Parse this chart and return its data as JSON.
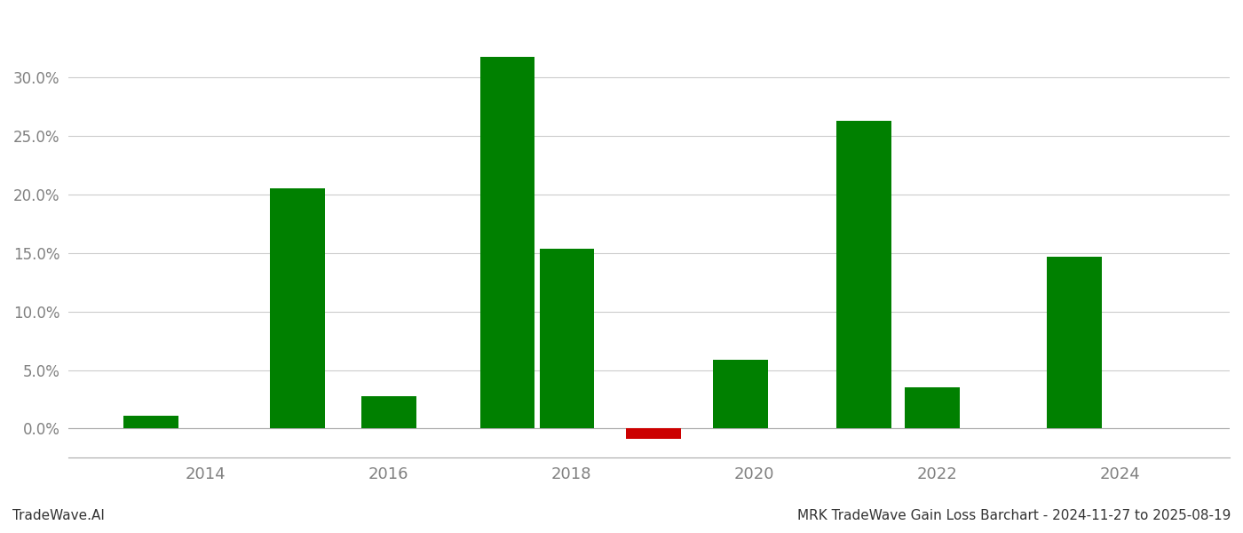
{
  "years": [
    2013.4,
    2015.0,
    2016.0,
    2017.3,
    2017.95,
    2018.9,
    2019.85,
    2021.2,
    2021.95,
    2023.5
  ],
  "values": [
    0.011,
    0.205,
    0.028,
    0.318,
    0.154,
    -0.009,
    0.059,
    0.263,
    0.035,
    0.147
  ],
  "colors": [
    "#008000",
    "#008000",
    "#008000",
    "#008000",
    "#008000",
    "#cc0000",
    "#008000",
    "#008000",
    "#008000",
    "#008000"
  ],
  "bar_width": 0.6,
  "footer_left": "TradeWave.AI",
  "footer_right": "MRK TradeWave Gain Loss Barchart - 2024-11-27 to 2025-08-19",
  "xlim": [
    2012.5,
    2025.2
  ],
  "ylim": [
    -0.025,
    0.355
  ],
  "xticks": [
    2014,
    2016,
    2018,
    2020,
    2022,
    2024
  ],
  "yticks": [
    0.0,
    0.05,
    0.1,
    0.15,
    0.2,
    0.25,
    0.3
  ],
  "grid_color": "#cccccc",
  "bg_color": "#ffffff",
  "axis_label_color": "#808080",
  "figsize": [
    14.0,
    6.0
  ],
  "dpi": 100
}
